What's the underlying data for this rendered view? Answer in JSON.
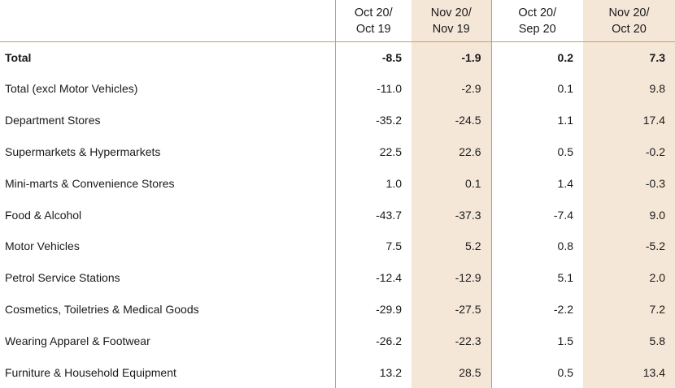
{
  "chart_data": {
    "type": "table",
    "columns": [
      {
        "line1": "Oct 20/",
        "line2": "Oct 19"
      },
      {
        "line1": "Nov 20/",
        "line2": "Nov 19"
      },
      {
        "line1": "Oct 20/",
        "line2": "Sep 20"
      },
      {
        "line1": "Nov 20/",
        "line2": "Oct 20"
      }
    ],
    "rows": [
      {
        "label": "Total",
        "values": [
          "-8.5",
          "-1.9",
          "0.2",
          "7.3"
        ]
      },
      {
        "label": "Total (excl Motor Vehicles)",
        "values": [
          "-11.0",
          "-2.9",
          "0.1",
          "9.8"
        ]
      },
      {
        "label": "Department Stores",
        "values": [
          "-35.2",
          "-24.5",
          "1.1",
          "17.4"
        ]
      },
      {
        "label": "Supermarkets & Hypermarkets",
        "values": [
          "22.5",
          "22.6",
          "0.5",
          "-0.2"
        ]
      },
      {
        "label": "Mini-marts & Convenience Stores",
        "values": [
          "1.0",
          "0.1",
          "1.4",
          "-0.3"
        ]
      },
      {
        "label": "Food & Alcohol",
        "values": [
          "-43.7",
          "-37.3",
          "-7.4",
          "9.0"
        ]
      },
      {
        "label": "Motor Vehicles",
        "values": [
          "7.5",
          "5.2",
          "0.8",
          "-5.2"
        ]
      },
      {
        "label": "Petrol Service Stations",
        "values": [
          "-12.4",
          "-12.9",
          "5.1",
          "2.0"
        ]
      },
      {
        "label": "Cosmetics, Toiletries & Medical Goods",
        "values": [
          "-29.9",
          "-27.5",
          "-2.2",
          "7.2"
        ]
      },
      {
        "label": "Wearing Apparel & Footwear",
        "values": [
          "-26.2",
          "-22.3",
          "1.5",
          "5.8"
        ]
      },
      {
        "label": "Furniture & Household Equipment",
        "values": [
          "13.2",
          "28.5",
          "0.5",
          "13.4"
        ]
      }
    ],
    "colors": {
      "highlight": "#f5e7d8",
      "rule": "#d89a4a"
    }
  }
}
